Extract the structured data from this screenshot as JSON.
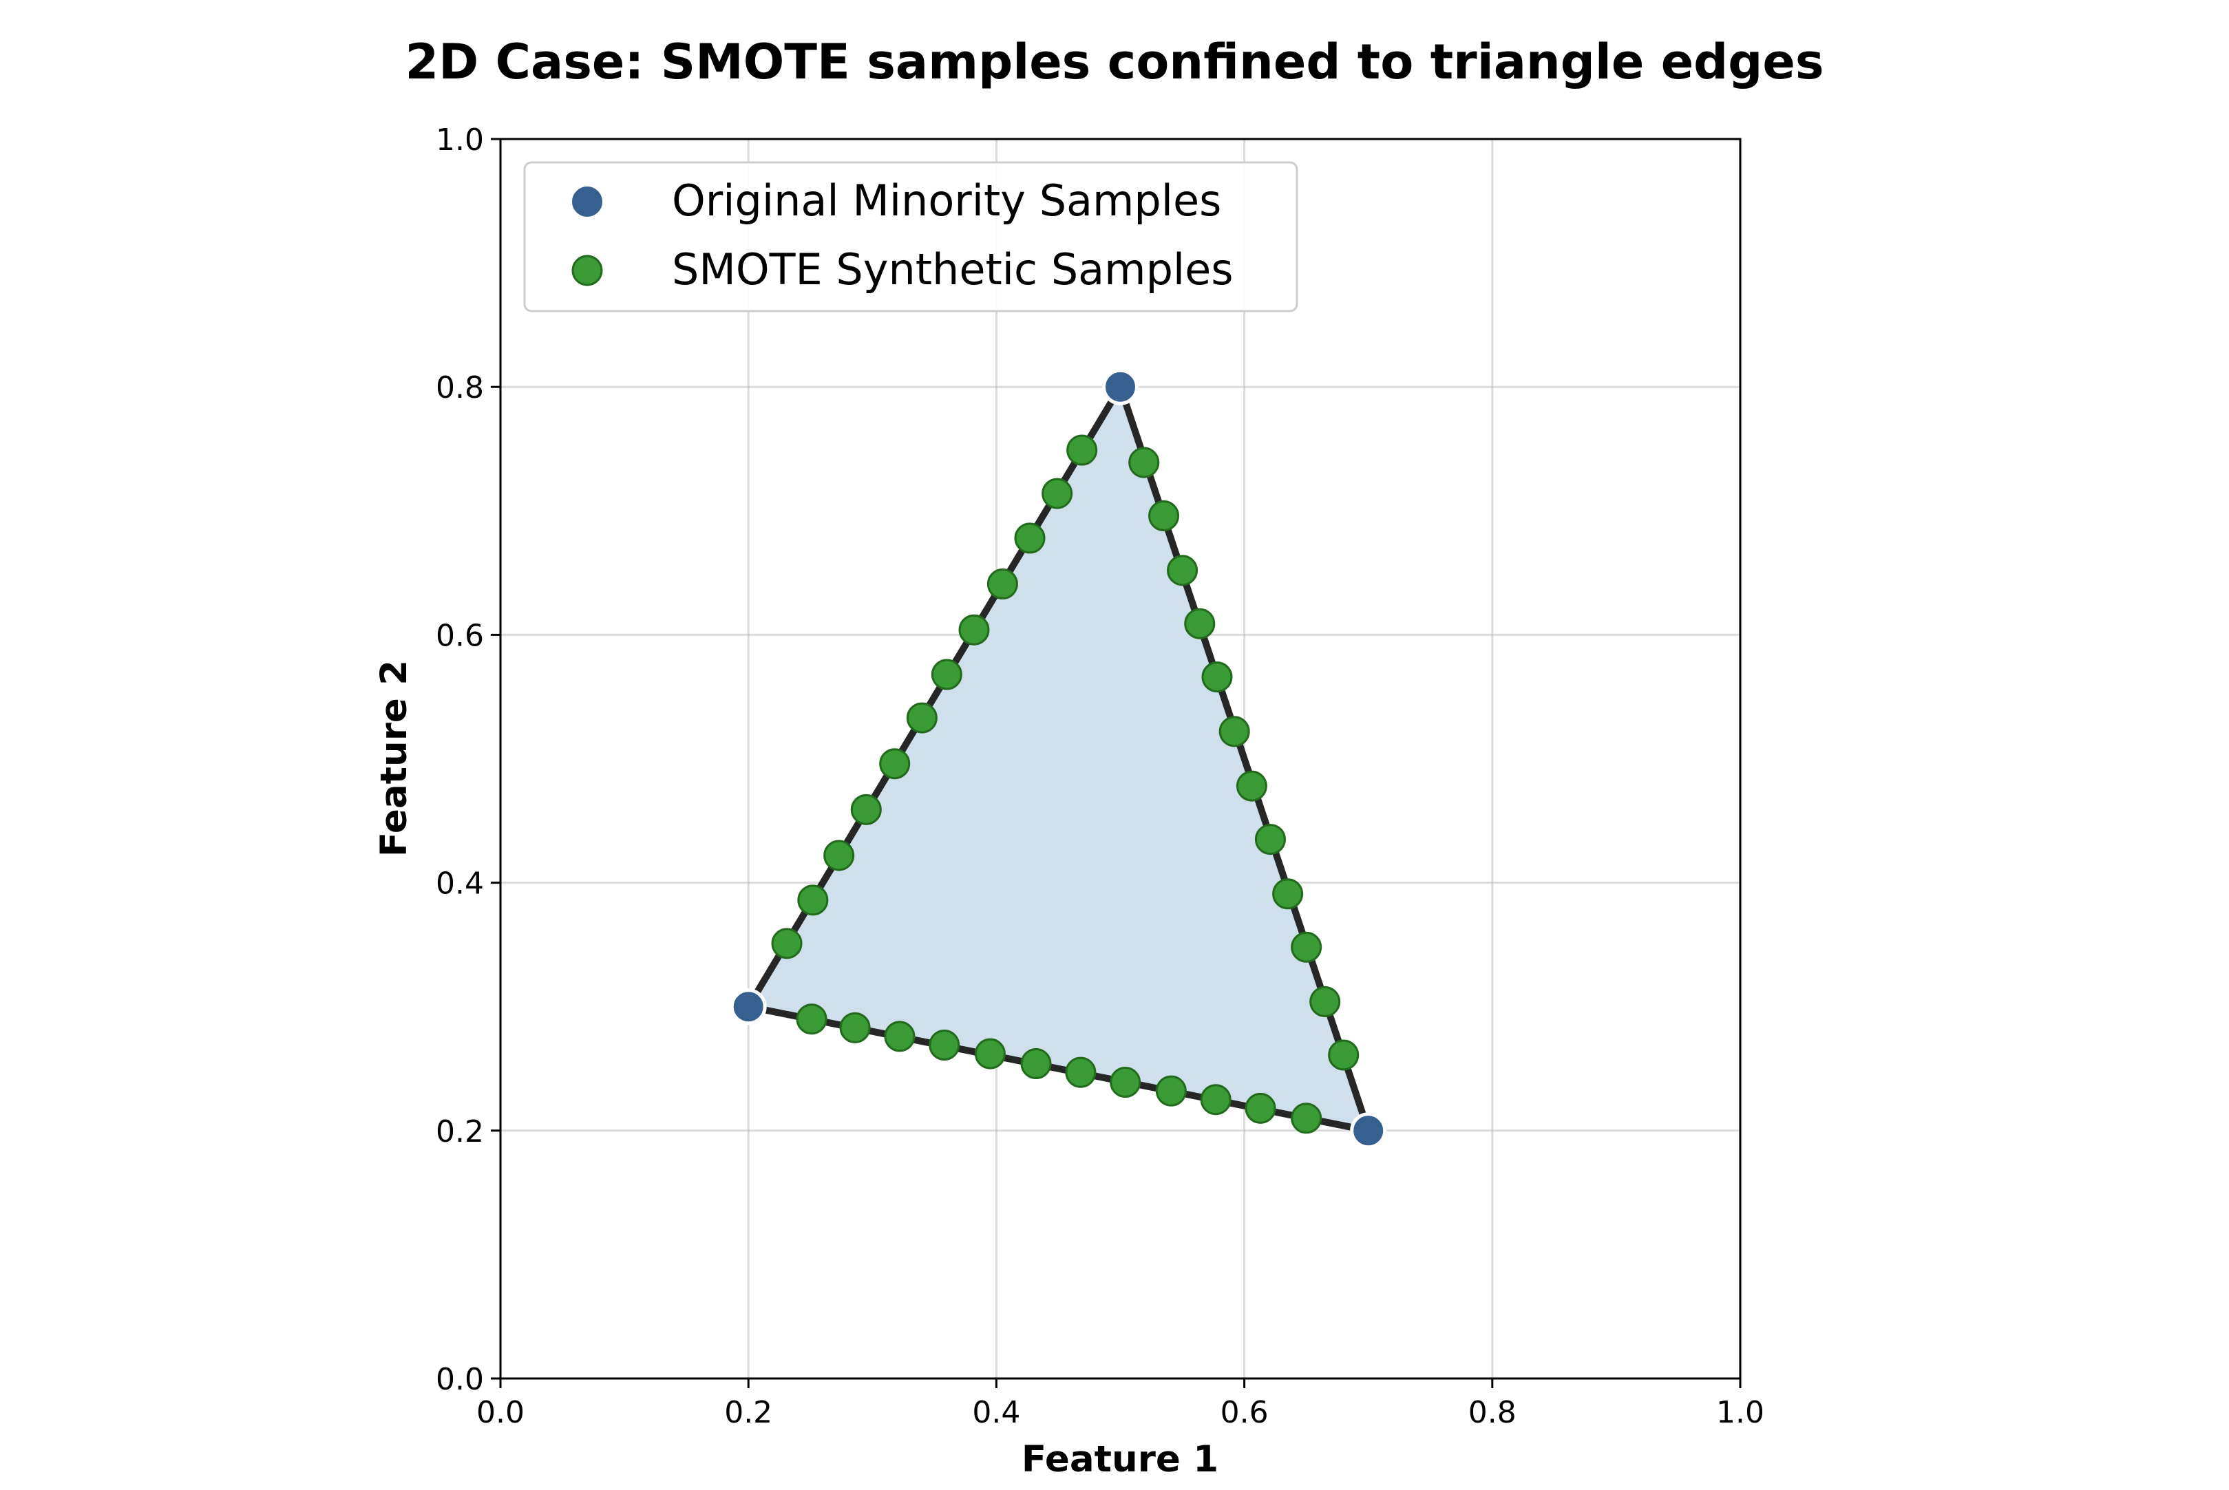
{
  "chart_data": {
    "type": "scatter",
    "title": "2D Case: SMOTE samples confined to triangle edges",
    "xlabel": "Feature 1",
    "ylabel": "Feature 2",
    "xlim": [
      0.0,
      1.0
    ],
    "ylim": [
      0.0,
      1.0
    ],
    "xticks": [
      "0.0",
      "0.2",
      "0.4",
      "0.6",
      "0.8",
      "1.0"
    ],
    "yticks": [
      "0.0",
      "0.2",
      "0.4",
      "0.6",
      "0.8",
      "1.0"
    ],
    "grid": true,
    "legend_position": "top-left",
    "triangle": {
      "vertices": [
        [
          0.2,
          0.3
        ],
        [
          0.5,
          0.8
        ],
        [
          0.7,
          0.2
        ]
      ],
      "fill_color": "#cfdfec",
      "edge_color": "#262626"
    },
    "series": [
      {
        "name": "Original Minority Samples",
        "color": "#35608f",
        "edge": "#ffffff",
        "points": [
          [
            0.2,
            0.3
          ],
          [
            0.5,
            0.8
          ],
          [
            0.7,
            0.2
          ]
        ]
      },
      {
        "name": "SMOTE Synthetic Samples",
        "color": "#3a9a35",
        "edge": "#226b1c",
        "points": [
          [
            0.231,
            0.351
          ],
          [
            0.252,
            0.386
          ],
          [
            0.273,
            0.422
          ],
          [
            0.295,
            0.459
          ],
          [
            0.318,
            0.496
          ],
          [
            0.34,
            0.533
          ],
          [
            0.36,
            0.568
          ],
          [
            0.382,
            0.604
          ],
          [
            0.405,
            0.641
          ],
          [
            0.427,
            0.678
          ],
          [
            0.449,
            0.714
          ],
          [
            0.469,
            0.749
          ],
          [
            0.519,
            0.739
          ],
          [
            0.535,
            0.696
          ],
          [
            0.55,
            0.652
          ],
          [
            0.564,
            0.609
          ],
          [
            0.578,
            0.566
          ],
          [
            0.592,
            0.522
          ],
          [
            0.606,
            0.478
          ],
          [
            0.621,
            0.435
          ],
          [
            0.635,
            0.391
          ],
          [
            0.65,
            0.348
          ],
          [
            0.665,
            0.304
          ],
          [
            0.68,
            0.261
          ],
          [
            0.251,
            0.29
          ],
          [
            0.286,
            0.283
          ],
          [
            0.322,
            0.276
          ],
          [
            0.358,
            0.269
          ],
          [
            0.395,
            0.262
          ],
          [
            0.432,
            0.254
          ],
          [
            0.468,
            0.247
          ],
          [
            0.504,
            0.239
          ],
          [
            0.541,
            0.232
          ],
          [
            0.577,
            0.225
          ],
          [
            0.613,
            0.218
          ],
          [
            0.65,
            0.21
          ]
        ]
      }
    ]
  }
}
